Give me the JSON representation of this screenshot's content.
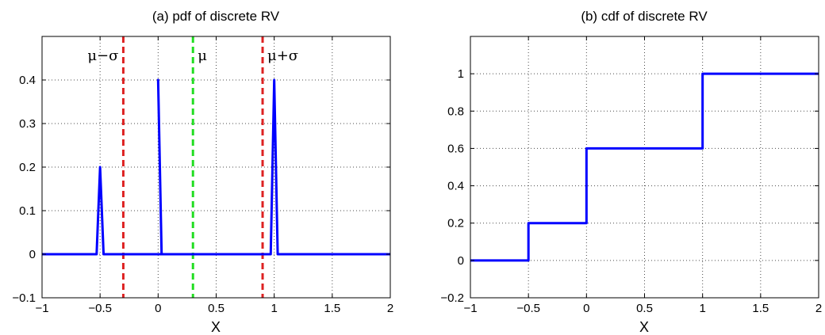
{
  "chart_data": [
    {
      "id": "pdf",
      "type": "line",
      "title": "(a) pdf of discrete RV",
      "xlabel": "X",
      "ylabel": "",
      "xlim": [
        -1,
        2
      ],
      "ylim": [
        -0.1,
        0.5
      ],
      "xticks": [
        -1,
        -0.5,
        0,
        0.5,
        1,
        1.5,
        2
      ],
      "xtick_labels": [
        "−1",
        "−0.5",
        "0",
        "0.5",
        "1",
        "1.5",
        "2"
      ],
      "yticks": [
        -0.1,
        0,
        0.1,
        0.2,
        0.3,
        0.4
      ],
      "ytick_labels": [
        "−0.1",
        "0",
        "0.1",
        "0.2",
        "0.3",
        "0.4"
      ],
      "grid": true,
      "series": [
        {
          "color": "#0000ff",
          "x": [
            -1,
            -0.53,
            -0.5,
            -0.47,
            0.03,
            0,
            0.03,
            0.97,
            1,
            1.03,
            2
          ],
          "y": [
            0,
            0,
            0.2,
            0,
            0,
            0.4,
            0,
            0,
            0.4,
            0,
            0
          ]
        }
      ],
      "vlines": [
        {
          "x": -0.3,
          "color": "#dd2222",
          "label": "μ−σ",
          "label_side": "left"
        },
        {
          "x": 0.3,
          "color": "#22dd22",
          "label": "μ",
          "label_side": "right"
        },
        {
          "x": 0.9,
          "color": "#dd2222",
          "label": "μ+σ",
          "label_side": "right"
        }
      ]
    },
    {
      "id": "cdf",
      "type": "line",
      "title": "(b) cdf of discrete RV",
      "xlabel": "X",
      "ylabel": "",
      "xlim": [
        -1,
        2
      ],
      "ylim": [
        -0.2,
        1.2
      ],
      "xticks": [
        -1,
        -0.5,
        0,
        0.5,
        1,
        1.5,
        2
      ],
      "xtick_labels": [
        "−1",
        "−0.5",
        "0",
        "0.5",
        "1",
        "1.5",
        "2"
      ],
      "yticks": [
        -0.2,
        0,
        0.2,
        0.4,
        0.6,
        0.8,
        1
      ],
      "ytick_labels": [
        "−0.2",
        "0",
        "0.2",
        "0.4",
        "0.6",
        "0.8",
        "1"
      ],
      "grid": true,
      "series": [
        {
          "color": "#0000ff",
          "x": [
            -1,
            -0.5,
            -0.5,
            0,
            0,
            1,
            1,
            2
          ],
          "y": [
            0,
            0,
            0.2,
            0.2,
            0.6,
            0.6,
            1,
            1
          ]
        }
      ],
      "vlines": []
    }
  ]
}
